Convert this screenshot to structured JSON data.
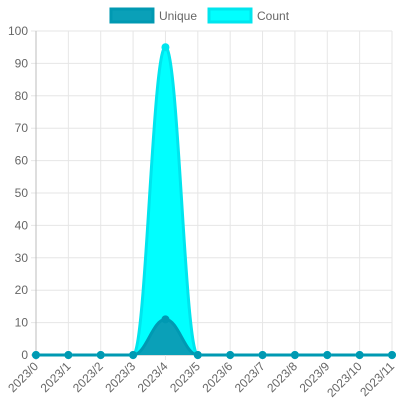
{
  "chart_data": {
    "type": "area",
    "categories": [
      "2023/0",
      "2023/1",
      "2023/2",
      "2023/3",
      "2023/4",
      "2023/5",
      "2023/6",
      "2023/7",
      "2023/8",
      "2023/9",
      "2023/10",
      "2023/11"
    ],
    "series": [
      {
        "name": "Unique",
        "values": [
          0,
          0,
          0,
          0,
          11,
          0,
          0,
          0,
          0,
          0,
          0,
          0
        ],
        "color": "#0099B2",
        "fill": "#0AA0B8"
      },
      {
        "name": "Count",
        "values": [
          0,
          0,
          0,
          0,
          95,
          0,
          0,
          0,
          0,
          0,
          0,
          0
        ],
        "color": "#00E5EE",
        "fill": "#00FFFF"
      }
    ],
    "y_ticks": [
      "0",
      "10",
      "20",
      "30",
      "40",
      "50",
      "60",
      "70",
      "80",
      "90",
      "100"
    ],
    "ylim": [
      0,
      100
    ],
    "grid": true,
    "legend_position": "top",
    "title": "",
    "xlabel": "",
    "ylabel": ""
  }
}
